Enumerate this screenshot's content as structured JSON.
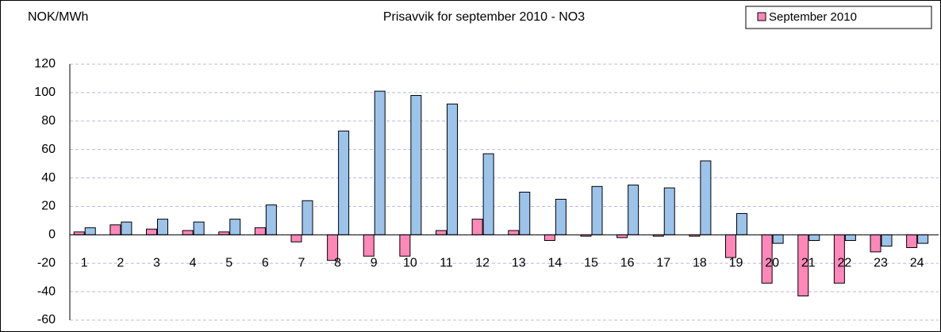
{
  "chart_data": {
    "type": "bar",
    "title": "Prisavvik for september 2010 - NO3",
    "ylabel": "NOK/MWh",
    "categories": [
      "1",
      "2",
      "3",
      "4",
      "5",
      "6",
      "7",
      "8",
      "9",
      "10",
      "11",
      "12",
      "13",
      "14",
      "15",
      "16",
      "17",
      "18",
      "19",
      "20",
      "21",
      "22",
      "23",
      "24"
    ],
    "series": [
      {
        "name": "September 2010",
        "color": "#ff88b8",
        "values": [
          2,
          7,
          4,
          3,
          2,
          5,
          -5,
          -18,
          -15,
          -15,
          3,
          11,
          3,
          -4,
          -1,
          -2,
          -1,
          -1,
          -16,
          -34,
          -43,
          -34,
          -12,
          -9
        ]
      },
      {
        "color": "#9cc3ea",
        "values": [
          5,
          9,
          11,
          9,
          11,
          21,
          24,
          73,
          101,
          98,
          92,
          57,
          30,
          25,
          34,
          35,
          33,
          52,
          15,
          -6,
          -4,
          -4,
          -8,
          -6
        ]
      }
    ],
    "ylim": [
      -60,
      120
    ],
    "yticks": [
      -60,
      -40,
      -20,
      0,
      20,
      40,
      60,
      80,
      100,
      120
    ],
    "grid": true,
    "legend": "top-right"
  }
}
